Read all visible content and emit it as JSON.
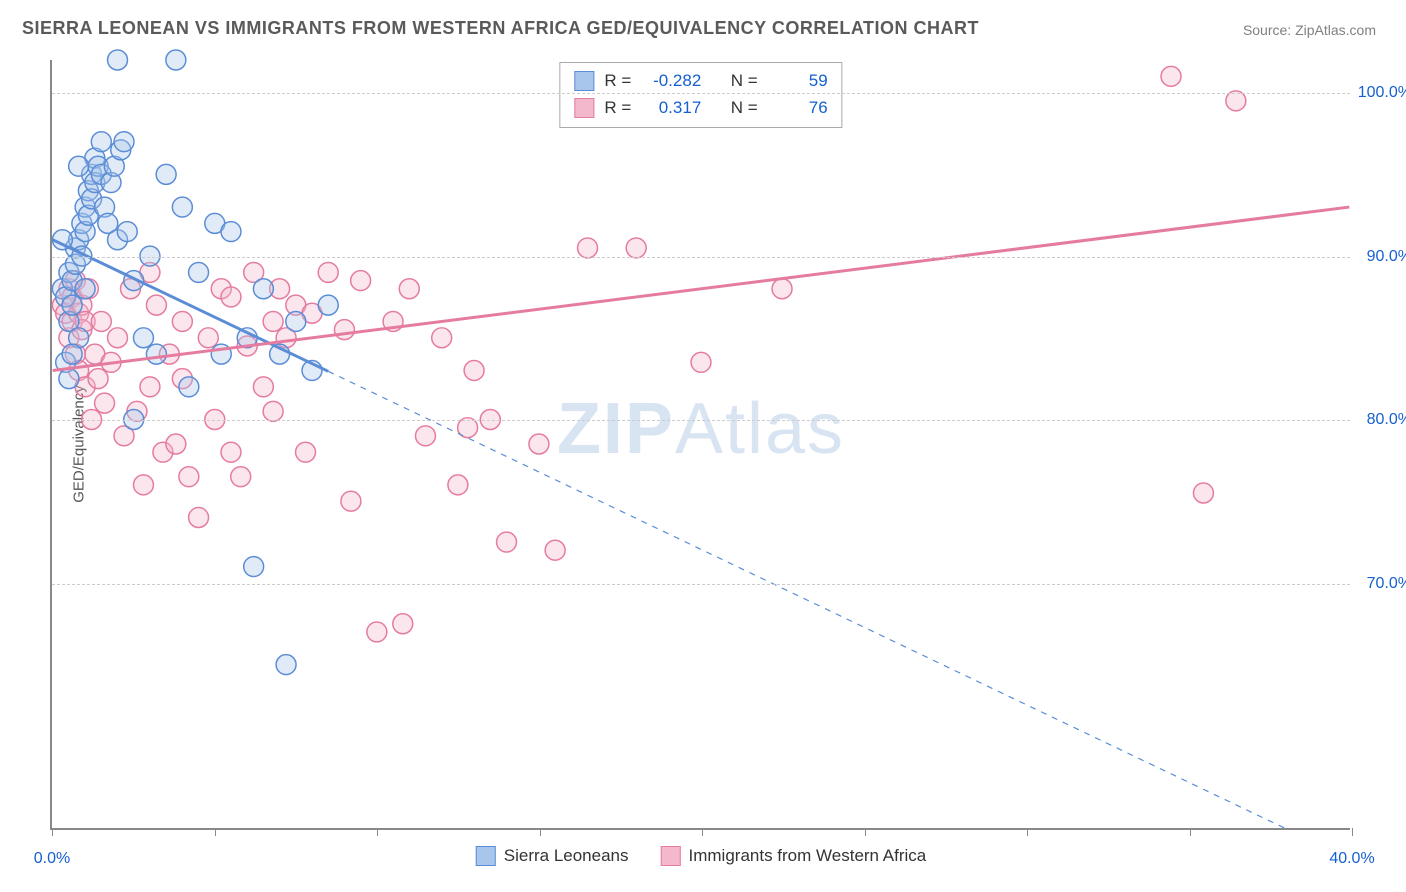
{
  "title": "SIERRA LEONEAN VS IMMIGRANTS FROM WESTERN AFRICA GED/EQUIVALENCY CORRELATION CHART",
  "source": "Source: ZipAtlas.com",
  "yaxis_label": "GED/Equivalency",
  "watermark_bold": "ZIP",
  "watermark_light": "Atlas",
  "chart": {
    "type": "scatter-with-regression",
    "background_color": "#ffffff",
    "grid_color": "#cccccc",
    "grid_dash": "4,4",
    "axis_color": "#888888",
    "xlim": [
      0,
      40
    ],
    "ylim": [
      55,
      102
    ],
    "xtick_positions": [
      0,
      5,
      10,
      15,
      20,
      25,
      30,
      35,
      40
    ],
    "xtick_labels": {
      "0": "0.0%",
      "40": "40.0%"
    },
    "ytick_positions": [
      70,
      80,
      90,
      100
    ],
    "ytick_labels": {
      "70": "70.0%",
      "80": "80.0%",
      "90": "90.0%",
      "100": "100.0%"
    },
    "marker_radius": 10,
    "marker_stroke_width": 1.5,
    "marker_fill_opacity": 0.35,
    "line_width_solid": 3,
    "line_width_dash": 1.2,
    "label_color": "#1560d0",
    "label_fontsize": 16
  },
  "series": [
    {
      "name": "Sierra Leoneans",
      "color_stroke": "#5b8dd6",
      "color_fill": "#a8c5ec",
      "R": "-0.282",
      "N": "59",
      "regression": {
        "x0": 0,
        "y0": 91,
        "x1": 38,
        "y1": 55,
        "x_solid_end": 8.5
      },
      "points": [
        [
          0.3,
          88
        ],
        [
          0.4,
          87.5
        ],
        [
          0.5,
          89
        ],
        [
          0.5,
          86
        ],
        [
          0.6,
          88.5
        ],
        [
          0.6,
          87
        ],
        [
          0.7,
          90.5
        ],
        [
          0.7,
          89.5
        ],
        [
          0.8,
          91
        ],
        [
          0.8,
          85
        ],
        [
          0.9,
          92
        ],
        [
          0.9,
          90
        ],
        [
          1.0,
          93
        ],
        [
          1.0,
          91.5
        ],
        [
          1.1,
          94
        ],
        [
          1.1,
          92.5
        ],
        [
          1.2,
          95
        ],
        [
          1.2,
          93.5
        ],
        [
          1.3,
          96
        ],
        [
          1.3,
          94.5
        ],
        [
          1.4,
          95.5
        ],
        [
          1.5,
          97
        ],
        [
          1.5,
          95
        ],
        [
          1.6,
          93
        ],
        [
          1.7,
          92
        ],
        [
          1.8,
          94.5
        ],
        [
          1.9,
          95.5
        ],
        [
          2.0,
          91
        ],
        [
          2.0,
          102
        ],
        [
          2.1,
          96.5
        ],
        [
          2.2,
          97
        ],
        [
          2.3,
          91.5
        ],
        [
          2.5,
          88.5
        ],
        [
          2.5,
          80
        ],
        [
          2.8,
          85
        ],
        [
          3.0,
          90
        ],
        [
          3.2,
          84
        ],
        [
          3.5,
          95
        ],
        [
          3.8,
          102
        ],
        [
          4.0,
          93
        ],
        [
          4.2,
          82
        ],
        [
          4.5,
          89
        ],
        [
          5.0,
          92
        ],
        [
          5.2,
          84
        ],
        [
          5.5,
          91.5
        ],
        [
          6.0,
          85
        ],
        [
          6.2,
          71
        ],
        [
          6.5,
          88
        ],
        [
          7.0,
          84
        ],
        [
          7.2,
          65
        ],
        [
          7.5,
          86
        ],
        [
          8.0,
          83
        ],
        [
          8.5,
          87
        ],
        [
          0.4,
          83.5
        ],
        [
          0.6,
          84
        ],
        [
          0.3,
          91
        ],
        [
          0.5,
          82.5
        ],
        [
          0.8,
          95.5
        ],
        [
          1.0,
          88
        ]
      ]
    },
    {
      "name": "Immigrants from Western Africa",
      "color_stroke": "#e57ba0",
      "color_fill": "#f4b8cc",
      "R": "0.317",
      "N": "76",
      "regression": {
        "x0": 0,
        "y0": 83,
        "x1": 40,
        "y1": 93,
        "x_solid_end": 40
      },
      "points": [
        [
          0.3,
          87
        ],
        [
          0.4,
          86.5
        ],
        [
          0.5,
          88
        ],
        [
          0.5,
          85
        ],
        [
          0.6,
          87.5
        ],
        [
          0.6,
          86
        ],
        [
          0.7,
          88.5
        ],
        [
          0.7,
          84
        ],
        [
          0.8,
          86.5
        ],
        [
          0.8,
          83
        ],
        [
          0.9,
          87
        ],
        [
          0.9,
          85.5
        ],
        [
          1.0,
          86
        ],
        [
          1.0,
          82
        ],
        [
          1.1,
          88
        ],
        [
          1.2,
          80
        ],
        [
          1.3,
          84
        ],
        [
          1.4,
          82.5
        ],
        [
          1.5,
          86
        ],
        [
          1.6,
          81
        ],
        [
          1.8,
          83.5
        ],
        [
          2.0,
          85
        ],
        [
          2.2,
          79
        ],
        [
          2.4,
          88
        ],
        [
          2.6,
          80.5
        ],
        [
          2.8,
          76
        ],
        [
          3.0,
          82
        ],
        [
          3.2,
          87
        ],
        [
          3.4,
          78
        ],
        [
          3.6,
          84
        ],
        [
          3.8,
          78.5
        ],
        [
          4.0,
          86
        ],
        [
          4.2,
          76.5
        ],
        [
          4.5,
          74
        ],
        [
          4.8,
          85
        ],
        [
          5.0,
          80
        ],
        [
          5.2,
          88
        ],
        [
          5.5,
          78
        ],
        [
          5.8,
          76.5
        ],
        [
          6.0,
          84.5
        ],
        [
          6.2,
          89
        ],
        [
          6.5,
          82
        ],
        [
          6.8,
          80.5
        ],
        [
          7.0,
          88
        ],
        [
          7.2,
          85
        ],
        [
          7.5,
          87
        ],
        [
          7.8,
          78
        ],
        [
          8.0,
          86.5
        ],
        [
          8.5,
          89
        ],
        [
          9.0,
          85.5
        ],
        [
          9.2,
          75
        ],
        [
          9.5,
          88.5
        ],
        [
          10.0,
          67
        ],
        [
          10.5,
          86
        ],
        [
          10.8,
          67.5
        ],
        [
          11.0,
          88
        ],
        [
          11.5,
          79
        ],
        [
          12.0,
          85
        ],
        [
          12.5,
          76
        ],
        [
          12.8,
          79.5
        ],
        [
          13.0,
          83
        ],
        [
          13.5,
          80
        ],
        [
          14.0,
          72.5
        ],
        [
          15.0,
          78.5
        ],
        [
          15.5,
          72
        ],
        [
          16.5,
          90.5
        ],
        [
          18.0,
          90.5
        ],
        [
          20.0,
          83.5
        ],
        [
          22.5,
          88
        ],
        [
          34.5,
          101
        ],
        [
          35.5,
          75.5
        ],
        [
          36.5,
          99.5
        ],
        [
          3.0,
          89
        ],
        [
          4.0,
          82.5
        ],
        [
          5.5,
          87.5
        ],
        [
          6.8,
          86
        ]
      ]
    }
  ],
  "stats_box": {
    "R_label": "R =",
    "N_label": "N ="
  },
  "bottom_legend_labels": [
    "Sierra Leoneans",
    "Immigrants from Western Africa"
  ]
}
